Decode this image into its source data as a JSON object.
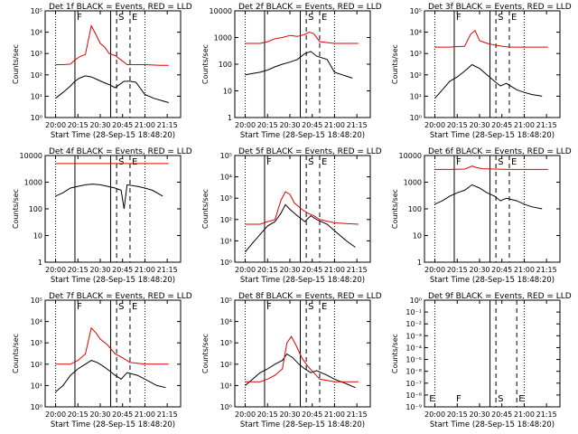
{
  "figure": {
    "legend_text": "BLACK = Events, RED = LLD",
    "xlabel": "Start Time (28-Sep-15 18:48:20)",
    "ylabel": "Counts/sec",
    "time_ticks": [
      "20:00",
      "20:15",
      "20:30",
      "20:45",
      "21:00",
      "21:15"
    ],
    "colors": {
      "events": "#000000",
      "lld": "#e00000",
      "axes": "#000000"
    }
  },
  "chart_data": [
    {
      "type": "line",
      "title": "Det 1f",
      "yscale": "log",
      "ylim": [
        1,
        100000
      ],
      "yticks": [
        "10⁰",
        "10¹",
        "10²",
        "10³",
        "10⁴",
        "10⁵"
      ],
      "markers": [
        {
          "label": "F",
          "x": "20:13",
          "style": "solid"
        },
        {
          "label": "S",
          "x": "20:41",
          "style": "dashed"
        },
        {
          "label": "E",
          "x": "20:50",
          "style": "dashed"
        }
      ],
      "solid_lines": [
        "20:13",
        "20:37"
      ],
      "series": [
        {
          "name": "Events",
          "color": "#000000",
          "x": [
            "20:00",
            "20:05",
            "20:10",
            "20:13",
            "20:16",
            "20:20",
            "20:24",
            "20:28",
            "20:32",
            "20:36",
            "20:40",
            "20:44",
            "20:46",
            "20:50",
            "20:54",
            "21:00",
            "21:06",
            "21:12",
            "21:16"
          ],
          "y": [
            8,
            15,
            30,
            50,
            70,
            90,
            80,
            60,
            45,
            35,
            25,
            40,
            50,
            50,
            45,
            12,
            8,
            6,
            5
          ]
        },
        {
          "name": "LLD",
          "color": "#e00000",
          "x": [
            "20:00",
            "20:05",
            "20:10",
            "20:13",
            "20:16",
            "20:20",
            "20:24",
            "20:27",
            "20:30",
            "20:33",
            "20:36",
            "20:40",
            "20:44",
            "20:48",
            "20:52",
            "21:00",
            "21:10",
            "21:16"
          ],
          "y": [
            300,
            300,
            320,
            500,
            700,
            900,
            20000,
            8000,
            3000,
            2000,
            1000,
            800,
            500,
            300,
            300,
            300,
            280,
            280
          ]
        }
      ]
    },
    {
      "type": "line",
      "title": "Det 2f",
      "yscale": "log",
      "ylim": [
        1,
        10000
      ],
      "yticks": [
        "1",
        "10",
        "100",
        "1000",
        "10000"
      ],
      "markers": [
        {
          "label": "S",
          "x": "20:41",
          "style": "dashed"
        },
        {
          "label": "E",
          "x": "20:50",
          "style": "dashed"
        }
      ],
      "solid_lines": [
        "20:13",
        "20:37"
      ],
      "series": [
        {
          "name": "Events",
          "color": "#000000",
          "x": [
            "20:00",
            "20:05",
            "20:10",
            "20:15",
            "20:20",
            "20:25",
            "20:30",
            "20:35",
            "20:40",
            "20:44",
            "20:48",
            "20:55",
            "21:00",
            "21:05",
            "21:12"
          ],
          "y": [
            40,
            45,
            50,
            60,
            80,
            100,
            120,
            150,
            250,
            300,
            200,
            150,
            50,
            40,
            30
          ]
        },
        {
          "name": "LLD",
          "color": "#e00000",
          "x": [
            "20:00",
            "20:10",
            "20:15",
            "20:20",
            "20:25",
            "20:30",
            "20:35",
            "20:40",
            "20:43",
            "20:46",
            "20:50",
            "21:00",
            "21:16"
          ],
          "y": [
            600,
            600,
            700,
            900,
            1000,
            1200,
            1100,
            1300,
            1600,
            1400,
            700,
            600,
            600
          ]
        }
      ]
    },
    {
      "type": "line",
      "title": "Det 3f",
      "yscale": "log",
      "ylim": [
        1,
        100000
      ],
      "yticks": [
        "10⁰",
        "10¹",
        "10²",
        "10³",
        "10⁴",
        "10⁵"
      ],
      "markers": [
        {
          "label": "F",
          "x": "20:13",
          "style": "solid"
        },
        {
          "label": "S",
          "x": "20:41",
          "style": "dashed"
        },
        {
          "label": "E",
          "x": "20:50",
          "style": "dashed"
        }
      ],
      "solid_lines": [
        "20:13",
        "20:37"
      ],
      "series": [
        {
          "name": "Events",
          "color": "#000000",
          "x": [
            "20:00",
            "20:05",
            "20:10",
            "20:15",
            "20:20",
            "20:25",
            "20:30",
            "20:35",
            "20:40",
            "20:44",
            "20:48",
            "20:55",
            "21:00",
            "21:05",
            "21:12"
          ],
          "y": [
            8,
            20,
            50,
            80,
            150,
            300,
            200,
            100,
            50,
            30,
            40,
            20,
            15,
            12,
            10
          ]
        },
        {
          "name": "LLD",
          "color": "#e00000",
          "x": [
            "20:00",
            "20:10",
            "20:20",
            "20:24",
            "20:27",
            "20:30",
            "20:35",
            "20:40",
            "20:45",
            "20:50",
            "21:00",
            "21:16"
          ],
          "y": [
            2000,
            2000,
            2200,
            8000,
            12000,
            4000,
            3000,
            2500,
            2200,
            2000,
            2000,
            2000
          ]
        }
      ]
    },
    {
      "type": "line",
      "title": "Det 4f",
      "yscale": "log",
      "ylim": [
        1,
        10000
      ],
      "yticks": [
        "1",
        "10",
        "100",
        "1000",
        "10000"
      ],
      "markers": [
        {
          "label": "S",
          "x": "20:41",
          "style": "dashed"
        },
        {
          "label": "E",
          "x": "20:50",
          "style": "dashed"
        }
      ],
      "solid_lines": [
        "20:13",
        "20:37"
      ],
      "series": [
        {
          "name": "Events",
          "color": "#000000",
          "x": [
            "20:00",
            "20:05",
            "20:10",
            "20:15",
            "20:20",
            "20:25",
            "20:30",
            "20:35",
            "20:40",
            "20:44",
            "20:46",
            "20:48",
            "20:55",
            "21:00",
            "21:05",
            "21:12"
          ],
          "y": [
            300,
            400,
            600,
            700,
            800,
            850,
            800,
            700,
            600,
            500,
            100,
            800,
            700,
            600,
            500,
            300
          ]
        },
        {
          "name": "LLD",
          "color": "#e00000",
          "x": [
            "20:00",
            "21:16"
          ],
          "y": [
            5000,
            5000
          ]
        }
      ]
    },
    {
      "type": "line",
      "title": "Det 5f",
      "yscale": "log",
      "ylim": [
        1,
        100000
      ],
      "yticks": [
        "10⁰",
        "10¹",
        "10²",
        "10³",
        "10⁴",
        "10⁵"
      ],
      "markers": [
        {
          "label": "F",
          "x": "20:13",
          "style": "solid"
        },
        {
          "label": "S",
          "x": "20:41",
          "style": "dashed"
        },
        {
          "label": "E",
          "x": "20:50",
          "style": "dashed"
        }
      ],
      "solid_lines": [
        "20:13",
        "20:37"
      ],
      "series": [
        {
          "name": "Events",
          "color": "#000000",
          "x": [
            "20:00",
            "20:05",
            "20:10",
            "20:15",
            "20:20",
            "20:24",
            "20:27",
            "20:30",
            "20:35",
            "20:40",
            "20:44",
            "20:48",
            "20:55",
            "21:00",
            "21:08",
            "21:14"
          ],
          "y": [
            3,
            8,
            20,
            50,
            80,
            200,
            500,
            300,
            150,
            80,
            150,
            100,
            60,
            30,
            10,
            5
          ]
        },
        {
          "name": "LLD",
          "color": "#e00000",
          "x": [
            "20:00",
            "20:10",
            "20:15",
            "20:20",
            "20:24",
            "20:27",
            "20:30",
            "20:33",
            "20:38",
            "20:42",
            "20:46",
            "20:50",
            "21:00",
            "21:16"
          ],
          "y": [
            60,
            60,
            80,
            100,
            800,
            2000,
            1500,
            600,
            300,
            200,
            150,
            100,
            70,
            60
          ]
        }
      ]
    },
    {
      "type": "line",
      "title": "Det 6f",
      "yscale": "log",
      "ylim": [
        1,
        10000
      ],
      "yticks": [
        "1",
        "10",
        "100",
        "1000",
        "10000"
      ],
      "markers": [
        {
          "label": "F",
          "x": "20:13",
          "style": "solid"
        },
        {
          "label": "S",
          "x": "20:41",
          "style": "dashed"
        },
        {
          "label": "E",
          "x": "20:50",
          "style": "dashed"
        }
      ],
      "solid_lines": [
        "20:13",
        "20:37"
      ],
      "series": [
        {
          "name": "Events",
          "color": "#000000",
          "x": [
            "20:00",
            "20:05",
            "20:10",
            "20:15",
            "20:20",
            "20:25",
            "20:30",
            "20:35",
            "20:40",
            "20:44",
            "20:48",
            "20:55",
            "21:00",
            "21:05",
            "21:12"
          ],
          "y": [
            150,
            200,
            300,
            400,
            500,
            800,
            600,
            400,
            300,
            200,
            250,
            200,
            150,
            120,
            100
          ]
        },
        {
          "name": "LLD",
          "color": "#e00000",
          "x": [
            "20:00",
            "20:10",
            "20:20",
            "20:25",
            "20:28",
            "20:32",
            "20:40",
            "20:50",
            "21:00",
            "21:16"
          ],
          "y": [
            3000,
            3000,
            3100,
            4000,
            3500,
            3200,
            3100,
            3000,
            3000,
            3000
          ]
        }
      ]
    },
    {
      "type": "line",
      "title": "Det 7f",
      "yscale": "log",
      "ylim": [
        1,
        100000
      ],
      "yticks": [
        "10⁰",
        "10¹",
        "10²",
        "10³",
        "10⁴",
        "10⁵"
      ],
      "markers": [
        {
          "label": "F",
          "x": "20:13",
          "style": "solid"
        },
        {
          "label": "S",
          "x": "20:41",
          "style": "dashed"
        },
        {
          "label": "E",
          "x": "20:50",
          "style": "dashed"
        }
      ],
      "solid_lines": [
        "20:13",
        "20:37"
      ],
      "series": [
        {
          "name": "Events",
          "color": "#000000",
          "x": [
            "20:00",
            "20:05",
            "20:10",
            "20:15",
            "20:20",
            "20:24",
            "20:28",
            "20:32",
            "20:36",
            "20:40",
            "20:44",
            "20:48",
            "20:55",
            "21:00",
            "21:08",
            "21:14"
          ],
          "y": [
            5,
            10,
            30,
            60,
            100,
            150,
            120,
            80,
            50,
            30,
            20,
            40,
            30,
            20,
            10,
            8
          ]
        },
        {
          "name": "LLD",
          "color": "#e00000",
          "x": [
            "20:00",
            "20:10",
            "20:15",
            "20:20",
            "20:24",
            "20:27",
            "20:30",
            "20:35",
            "20:40",
            "20:45",
            "20:50",
            "21:00",
            "21:16"
          ],
          "y": [
            100,
            100,
            150,
            300,
            5000,
            3000,
            1500,
            800,
            300,
            200,
            120,
            100,
            100
          ]
        }
      ]
    },
    {
      "type": "line",
      "title": "Det 8f",
      "yscale": "log",
      "ylim": [
        1,
        100000
      ],
      "yticks": [
        "10⁰",
        "10¹",
        "10²",
        "10³",
        "10⁴",
        "10⁵"
      ],
      "markers": [
        {
          "label": "F",
          "x": "20:13",
          "style": "solid"
        },
        {
          "label": "S",
          "x": "20:41",
          "style": "dashed"
        },
        {
          "label": "E",
          "x": "20:50",
          "style": "dashed"
        }
      ],
      "solid_lines": [
        "20:13",
        "20:37"
      ],
      "series": [
        {
          "name": "Events",
          "color": "#000000",
          "x": [
            "20:00",
            "20:05",
            "20:10",
            "20:15",
            "20:20",
            "20:25",
            "20:28",
            "20:32",
            "20:36",
            "20:40",
            "20:44",
            "20:48",
            "20:55",
            "21:00",
            "21:08",
            "21:14"
          ],
          "y": [
            10,
            20,
            40,
            60,
            100,
            150,
            300,
            200,
            100,
            60,
            40,
            50,
            30,
            20,
            12,
            8
          ]
        },
        {
          "name": "LLD",
          "color": "#e00000",
          "x": [
            "20:00",
            "20:10",
            "20:15",
            "20:20",
            "20:25",
            "20:28",
            "20:31",
            "20:34",
            "20:38",
            "20:42",
            "20:46",
            "20:50",
            "21:00",
            "21:16"
          ],
          "y": [
            15,
            15,
            20,
            30,
            60,
            1000,
            2000,
            800,
            200,
            80,
            40,
            20,
            15,
            15
          ]
        }
      ]
    },
    {
      "type": "line",
      "title": "Det 9f",
      "yscale": "log",
      "ylim": [
        1e-09,
        1
      ],
      "yticks": [
        "10⁻⁹",
        "10⁻⁸",
        "10⁻⁷",
        "10⁻⁶",
        "10⁻⁵",
        "10⁻⁴",
        "10⁻³",
        "10⁻²",
        "10⁻¹",
        "10⁰"
      ],
      "markers": [
        {
          "label": "E",
          "x": "19:55",
          "style": "none"
        },
        {
          "label": "F",
          "x": "20:13",
          "style": "none"
        },
        {
          "label": "S",
          "x": "20:41",
          "style": "dashed"
        },
        {
          "label": "E",
          "x": "20:55",
          "style": "dashed"
        }
      ],
      "solid_lines": [
        "20:37"
      ],
      "series": []
    }
  ]
}
